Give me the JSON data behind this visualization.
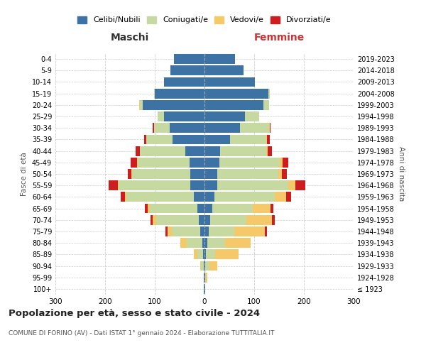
{
  "age_groups": [
    "100+",
    "95-99",
    "90-94",
    "85-89",
    "80-84",
    "75-79",
    "70-74",
    "65-69",
    "60-64",
    "55-59",
    "50-54",
    "45-49",
    "40-44",
    "35-39",
    "30-34",
    "25-29",
    "20-24",
    "15-19",
    "10-14",
    "5-9",
    "0-4"
  ],
  "birth_years": [
    "≤ 1923",
    "1924-1928",
    "1929-1933",
    "1934-1938",
    "1939-1943",
    "1944-1948",
    "1949-1953",
    "1954-1958",
    "1959-1963",
    "1964-1968",
    "1969-1973",
    "1974-1978",
    "1979-1983",
    "1984-1988",
    "1989-1993",
    "1994-1998",
    "1999-2003",
    "2004-2008",
    "2009-2013",
    "2014-2018",
    "2019-2023"
  ],
  "male": {
    "celibi": [
      1,
      1,
      2,
      3,
      4,
      8,
      12,
      15,
      22,
      28,
      28,
      30,
      38,
      65,
      70,
      82,
      125,
      100,
      82,
      68,
      62
    ],
    "coniugati": [
      0,
      0,
      5,
      12,
      32,
      58,
      85,
      95,
      135,
      145,
      118,
      105,
      92,
      52,
      32,
      12,
      5,
      2,
      0,
      0,
      0
    ],
    "vedovi": [
      0,
      0,
      2,
      6,
      12,
      8,
      7,
      5,
      3,
      2,
      1,
      1,
      0,
      0,
      0,
      0,
      2,
      0,
      0,
      0,
      0
    ],
    "divorziati": [
      0,
      0,
      0,
      0,
      0,
      5,
      5,
      5,
      8,
      18,
      8,
      12,
      8,
      5,
      2,
      0,
      0,
      0,
      0,
      0,
      0
    ]
  },
  "female": {
    "nubili": [
      1,
      1,
      2,
      3,
      5,
      8,
      12,
      15,
      20,
      26,
      26,
      30,
      32,
      52,
      72,
      82,
      118,
      128,
      102,
      78,
      62
    ],
    "coniugate": [
      0,
      2,
      8,
      18,
      36,
      52,
      72,
      82,
      122,
      142,
      122,
      122,
      92,
      72,
      58,
      28,
      12,
      3,
      0,
      0,
      0
    ],
    "vedove": [
      0,
      2,
      15,
      48,
      52,
      62,
      52,
      36,
      22,
      15,
      8,
      5,
      3,
      2,
      1,
      0,
      0,
      0,
      0,
      0,
      0
    ],
    "divorziate": [
      0,
      0,
      0,
      0,
      0,
      3,
      5,
      5,
      10,
      20,
      10,
      12,
      8,
      5,
      2,
      0,
      0,
      0,
      0,
      0,
      0
    ]
  },
  "colors": {
    "celibi_nubili": "#3d72a4",
    "coniugati": "#c5d9a0",
    "vedovi": "#f5c96a",
    "divorziati": "#cc1e1e"
  },
  "xlim": 300,
  "title": "Popolazione per età, sesso e stato civile - 2024",
  "subtitle": "COMUNE DI FORINO (AV) - Dati ISTAT 1° gennaio 2024 - Elaborazione TUTTITALIA.IT",
  "ylabel_left": "Fasce di età",
  "ylabel_right": "Anni di nascita",
  "xlabel_left": "Maschi",
  "xlabel_right": "Femmine",
  "xlabel_right_color": "#cc3333",
  "bg_color": "#ffffff",
  "grid_color": "#cccccc"
}
